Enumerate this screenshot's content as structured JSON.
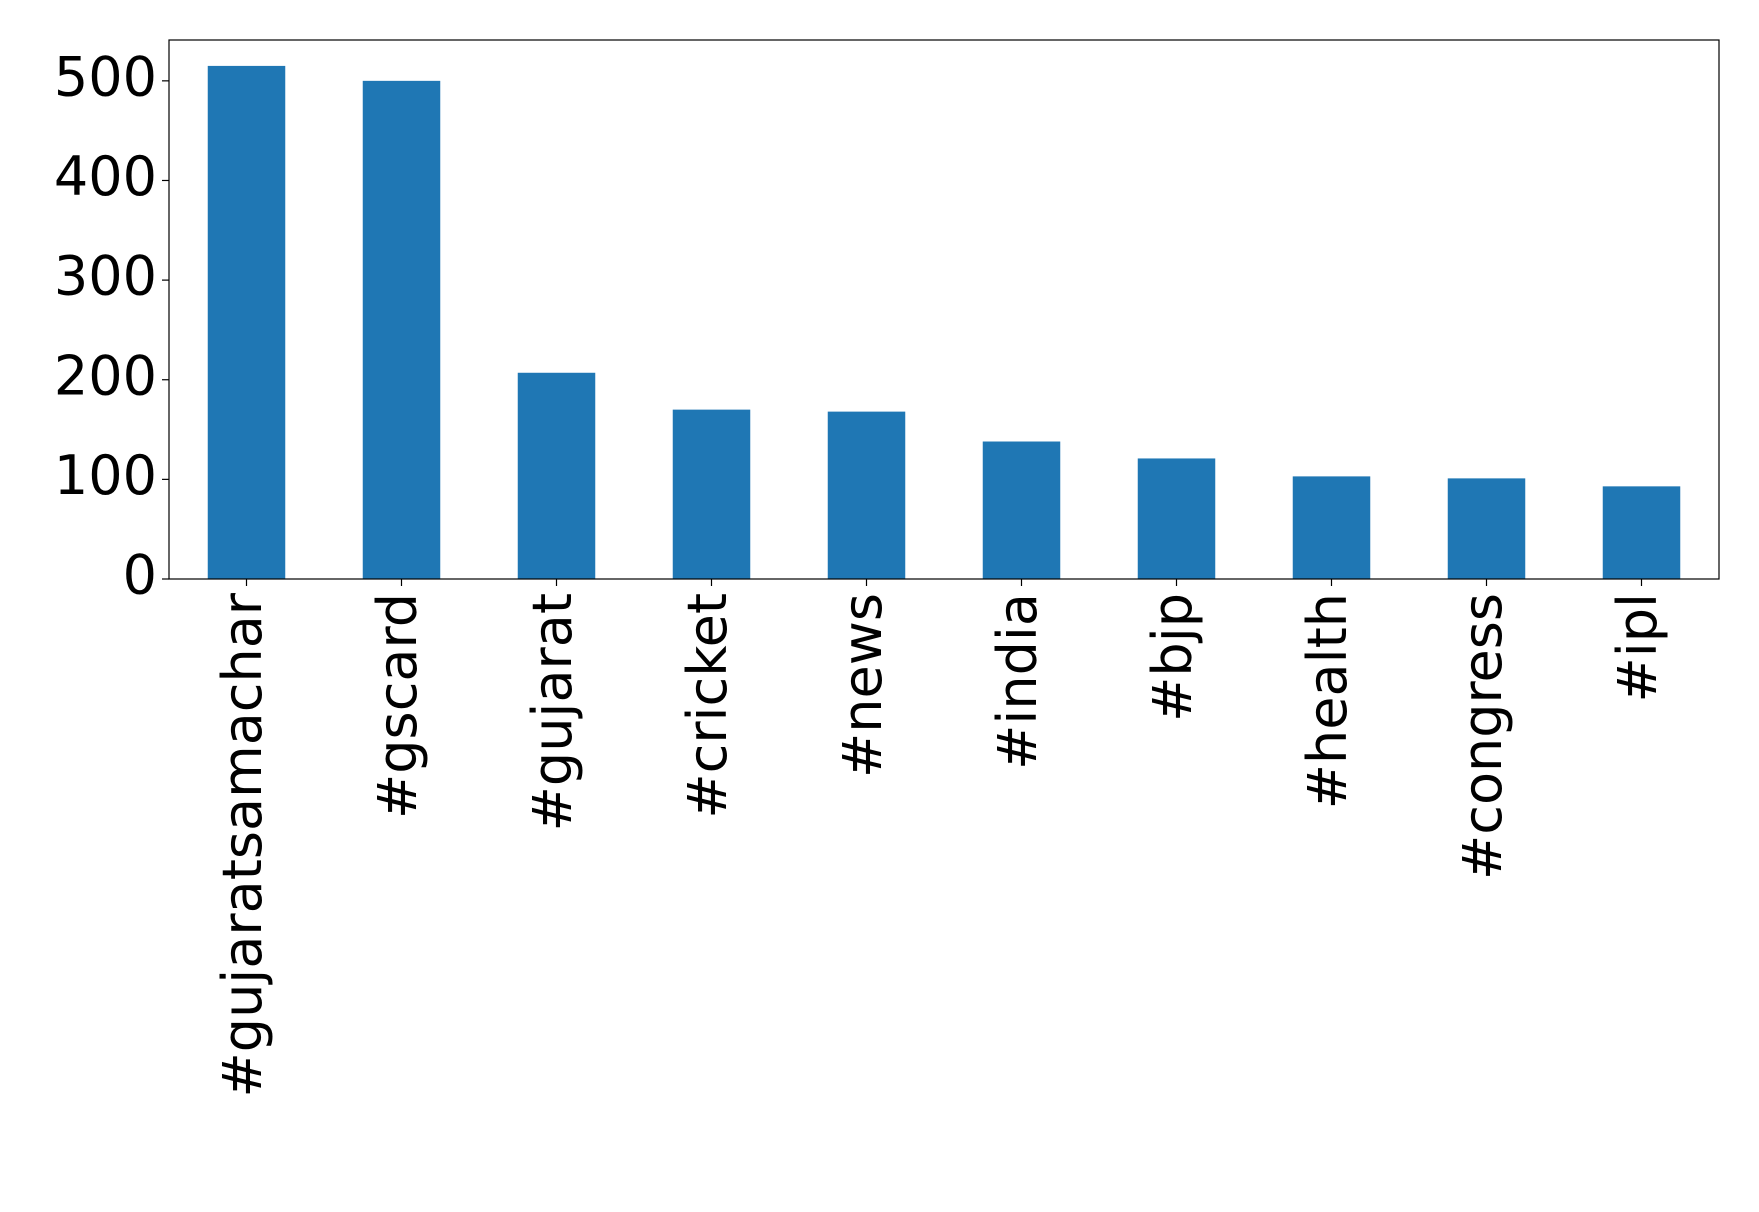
{
  "chart_data": {
    "type": "bar",
    "categories": [
      "#gujaratsamachar",
      "#gscard",
      "#gujarat",
      "#cricket",
      "#news",
      "#india",
      "#bjp",
      "#health",
      "#congress",
      "#ipl"
    ],
    "values": [
      515,
      500,
      207,
      170,
      168,
      138,
      121,
      103,
      101,
      93
    ],
    "color": "#1f77b4",
    "ylim": [
      0,
      541
    ],
    "yticks": [
      0,
      100,
      200,
      300,
      400,
      500
    ],
    "grid": false
  }
}
